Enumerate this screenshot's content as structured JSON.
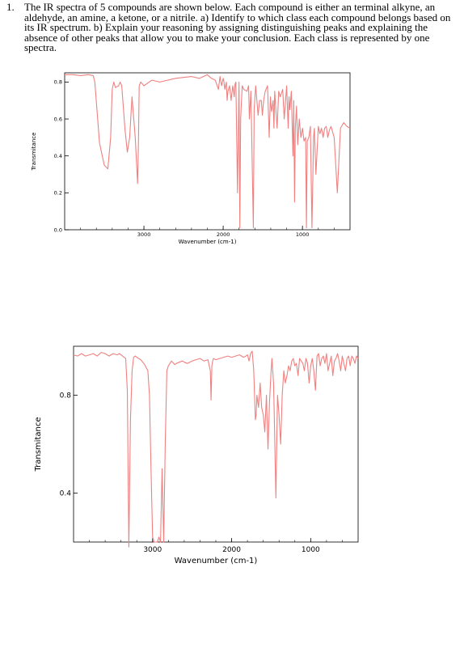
{
  "question": {
    "number": "1.",
    "text": "The IR spectra of 5 compounds are shown below. Each compound is either an terminal alkyne, an aldehyde, an amine, a ketone, or a nitrile. a) Identify to which class each compound belongs based on its IR spectrum. b) Explain your reasoning by assigning distinguishing peaks and explaining the absence of other peaks that allow you to make your conclusion. Each class is represented by one spectra."
  },
  "chart_data": [
    {
      "type": "line",
      "xlabel": "Wavenumber (cm-1)",
      "ylabel": "Transmitance",
      "xlim": [
        4000,
        400
      ],
      "ylim": [
        0,
        0.85
      ],
      "x_ticks": [
        "3000",
        "2000",
        "1000"
      ],
      "y_ticks": [
        "0.0",
        "0.2",
        "0.4",
        "0.6",
        "0.8"
      ],
      "line_color": "#f08080",
      "grid": false,
      "series": [
        {
          "x": [
            4000,
            3900,
            3800,
            3700,
            3640,
            3620,
            3560,
            3500,
            3455,
            3420,
            3400,
            3380,
            3360,
            3320,
            3300,
            3280,
            3240,
            3210,
            3180,
            3150,
            3110,
            3080,
            3070,
            3060,
            3040,
            3000,
            2900,
            2800,
            2600,
            2400,
            2300,
            2250,
            2200,
            2150,
            2100,
            2060,
            2040,
            2020,
            2000,
            1990,
            1980,
            1960,
            1950,
            1940,
            1920,
            1900,
            1890,
            1880,
            1860,
            1850,
            1840,
            1820,
            1800,
            1790,
            1780,
            1760,
            1740,
            1700,
            1680,
            1670,
            1650,
            1620,
            1610,
            1590,
            1560,
            1540,
            1520,
            1505,
            1490,
            1470,
            1440,
            1420,
            1405,
            1390,
            1370,
            1360,
            1350,
            1320,
            1300,
            1280,
            1250,
            1230,
            1200,
            1180,
            1170,
            1160,
            1140,
            1120,
            1110,
            1100,
            1090,
            1075,
            1060,
            1040,
            1020,
            1000,
            980,
            960,
            950,
            940,
            920,
            900,
            880,
            860,
            850,
            830,
            800,
            780,
            760,
            740,
            720,
            700,
            680,
            660,
            640,
            600,
            560,
            520,
            480,
            440,
            400
          ],
          "y": [
            0.84,
            0.84,
            0.835,
            0.84,
            0.835,
            0.8,
            0.47,
            0.35,
            0.33,
            0.5,
            0.76,
            0.8,
            0.77,
            0.78,
            0.8,
            0.78,
            0.55,
            0.42,
            0.5,
            0.72,
            0.5,
            0.25,
            0.45,
            0.78,
            0.8,
            0.78,
            0.81,
            0.8,
            0.82,
            0.83,
            0.82,
            0.83,
            0.84,
            0.82,
            0.81,
            0.76,
            0.83,
            0.78,
            0.82,
            0.8,
            0.76,
            0.8,
            0.7,
            0.75,
            0.78,
            0.7,
            0.74,
            0.78,
            0.72,
            0.79,
            0.8,
            0.2,
            0.8,
            0.01,
            0.6,
            0.78,
            0.76,
            0.75,
            0.78,
            0.6,
            0.75,
            0.01,
            0.65,
            0.78,
            0.62,
            0.7,
            0.7,
            0.62,
            0.7,
            0.75,
            0.78,
            0.5,
            0.72,
            0.64,
            0.7,
            0.55,
            0.75,
            0.55,
            0.75,
            0.72,
            0.76,
            0.6,
            0.78,
            0.55,
            0.72,
            0.65,
            0.75,
            0.4,
            0.7,
            0.15,
            0.55,
            0.67,
            0.46,
            0.6,
            0.5,
            0.55,
            0.48,
            0.5,
            0.01,
            0.48,
            0.5,
            0.56,
            0.01,
            0.5,
            0.55,
            0.3,
            0.56,
            0.52,
            0.55,
            0.5,
            0.55,
            0.56,
            0.5,
            0.54,
            0.56,
            0.5,
            0.2,
            0.55,
            0.58,
            0.56,
            0.55
          ]
        }
      ]
    },
    {
      "type": "line",
      "xlabel": "Wavenumber (cm-1)",
      "ylabel": "Transmitance",
      "xlim": [
        4000,
        400
      ],
      "ylim": [
        0.2,
        1.0
      ],
      "x_ticks": [
        "3000",
        "2000",
        "1000"
      ],
      "y_ticks": [
        "0.4",
        "0.8"
      ],
      "line_color": "#f08080",
      "grid": false,
      "series": [
        {
          "x": [
            4000,
            3950,
            3900,
            3850,
            3800,
            3750,
            3700,
            3650,
            3600,
            3550,
            3500,
            3450,
            3420,
            3380,
            3340,
            3320,
            3300,
            3280,
            3260,
            3240,
            3220,
            3200,
            3150,
            3100,
            3060,
            3040,
            3020,
            3000,
            2980,
            2960,
            2940,
            2920,
            2900,
            2880,
            2860,
            2840,
            2820,
            2800,
            2760,
            2720,
            2700,
            2660,
            2620,
            2600,
            2560,
            2500,
            2450,
            2400,
            2350,
            2300,
            2270,
            2260,
            2250,
            2240,
            2230,
            2200,
            2150,
            2100,
            2050,
            2000,
            1950,
            1900,
            1850,
            1820,
            1800,
            1780,
            1760,
            1740,
            1720,
            1710,
            1700,
            1690,
            1680,
            1660,
            1640,
            1620,
            1600,
            1580,
            1560,
            1540,
            1520,
            1500,
            1490,
            1480,
            1470,
            1460,
            1440,
            1420,
            1400,
            1380,
            1360,
            1340,
            1320,
            1300,
            1280,
            1260,
            1240,
            1220,
            1200,
            1180,
            1160,
            1140,
            1120,
            1100,
            1080,
            1060,
            1040,
            1020,
            1000,
            980,
            960,
            940,
            920,
            900,
            880,
            860,
            840,
            820,
            800,
            780,
            760,
            740,
            720,
            700,
            680,
            660,
            640,
            620,
            600,
            580,
            560,
            540,
            520,
            500,
            480,
            460,
            440,
            420,
            400
          ],
          "y": [
            0.965,
            0.96,
            0.97,
            0.96,
            0.965,
            0.97,
            0.96,
            0.975,
            0.97,
            0.96,
            0.97,
            0.965,
            0.97,
            0.96,
            0.95,
            0.82,
            0.18,
            0.7,
            0.9,
            0.955,
            0.96,
            0.955,
            0.945,
            0.925,
            0.9,
            0.8,
            0.5,
            0.22,
            0.2,
            0.2,
            0.2,
            0.22,
            0.2,
            0.5,
            0.2,
            0.6,
            0.9,
            0.92,
            0.94,
            0.925,
            0.93,
            0.935,
            0.94,
            0.935,
            0.93,
            0.94,
            0.945,
            0.95,
            0.94,
            0.945,
            0.9,
            0.78,
            0.92,
            0.94,
            0.95,
            0.945,
            0.95,
            0.955,
            0.96,
            0.955,
            0.96,
            0.965,
            0.955,
            0.96,
            0.965,
            0.94,
            0.97,
            0.98,
            0.9,
            0.8,
            0.7,
            0.72,
            0.8,
            0.75,
            0.85,
            0.75,
            0.72,
            0.65,
            0.8,
            0.58,
            0.78,
            0.9,
            0.95,
            0.9,
            0.85,
            0.7,
            0.38,
            0.8,
            0.72,
            0.6,
            0.8,
            0.9,
            0.85,
            0.88,
            0.92,
            0.9,
            0.94,
            0.95,
            0.92,
            0.93,
            0.88,
            0.95,
            0.94,
            0.93,
            0.9,
            0.95,
            0.93,
            0.85,
            0.92,
            0.95,
            0.9,
            0.82,
            0.96,
            0.97,
            0.92,
            0.95,
            0.96,
            0.93,
            0.97,
            0.9,
            0.93,
            0.96,
            0.88,
            0.94,
            0.95,
            0.97,
            0.94,
            0.9,
            0.96,
            0.93,
            0.9,
            0.95,
            0.96,
            0.92,
            0.96,
            0.95,
            0.93,
            0.96,
            0.95
          ]
        }
      ]
    }
  ]
}
